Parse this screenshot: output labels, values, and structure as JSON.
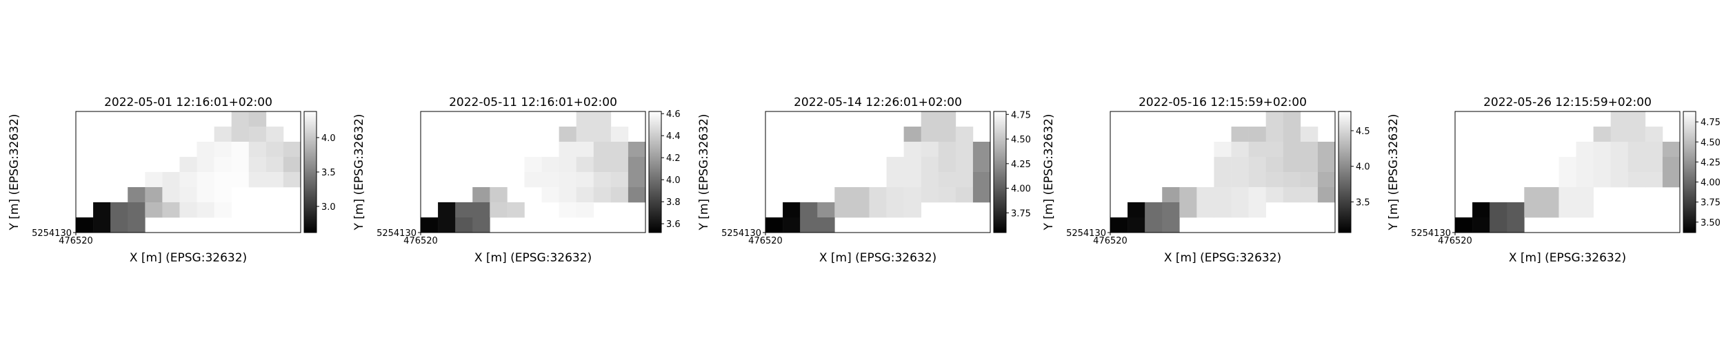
{
  "chart_data": [
    {
      "type": "heatmap",
      "title": "2022-05-01 12:16:01+02:00",
      "xlabel": "X [m] (EPSG:32632)",
      "ylabel": "Y [m] (EPSG:32632)",
      "x_tick_labels": [
        "476520"
      ],
      "y_tick_labels": [
        "5254130"
      ],
      "colorbar_ticks": [
        3.0,
        3.5,
        4.0
      ],
      "colorbar_tick_labels": [
        "3.0",
        "3.5",
        "4.0"
      ],
      "vmin": 2.62,
      "vmax": 4.38,
      "grid": [
        [
          null,
          null,
          null,
          null,
          null,
          null,
          null,
          null,
          null,
          4.1,
          4.05,
          null,
          null
        ],
        [
          null,
          null,
          null,
          null,
          null,
          null,
          null,
          null,
          4.2,
          4.1,
          4.12,
          4.2,
          null
        ],
        [
          null,
          null,
          null,
          null,
          null,
          null,
          null,
          4.3,
          4.32,
          4.35,
          4.2,
          4.15,
          4.1
        ],
        [
          null,
          null,
          null,
          null,
          null,
          null,
          4.25,
          4.3,
          4.34,
          4.35,
          4.22,
          4.18,
          4.05
        ],
        [
          null,
          null,
          null,
          null,
          4.3,
          4.25,
          4.3,
          4.34,
          4.36,
          4.36,
          4.25,
          4.25,
          4.15
        ],
        [
          null,
          null,
          null,
          3.55,
          3.8,
          4.25,
          4.28,
          4.34,
          4.36,
          null,
          null,
          null,
          null
        ],
        [
          null,
          2.7,
          3.3,
          3.35,
          3.9,
          4.02,
          4.25,
          4.28,
          4.34,
          null,
          null,
          null,
          null
        ],
        [
          2.65,
          2.7,
          3.3,
          3.35,
          null,
          null,
          null,
          null,
          null,
          null,
          null,
          null,
          null
        ]
      ]
    },
    {
      "type": "heatmap",
      "title": "2022-05-11 12:16:01+02:00",
      "xlabel": "X [m] (EPSG:32632)",
      "ylabel": "Y [m] (EPSG:32632)",
      "x_tick_labels": [
        "476520"
      ],
      "y_tick_labels": [
        "5254130"
      ],
      "colorbar_ticks": [
        3.6,
        3.8,
        4.0,
        4.2,
        4.4,
        4.6
      ],
      "colorbar_tick_labels": [
        "3.6",
        "3.8",
        "4.0",
        "4.2",
        "4.4",
        "4.6"
      ],
      "vmin": 3.52,
      "vmax": 4.62,
      "grid": [
        [
          null,
          null,
          null,
          null,
          null,
          null,
          null,
          null,
          null,
          4.48,
          4.48,
          null,
          null
        ],
        [
          null,
          null,
          null,
          null,
          null,
          null,
          null,
          null,
          4.4,
          4.48,
          4.48,
          4.55,
          null
        ],
        [
          null,
          null,
          null,
          null,
          null,
          null,
          null,
          null,
          4.55,
          4.55,
          4.45,
          4.45,
          4.2
        ],
        [
          null,
          null,
          null,
          null,
          null,
          null,
          4.58,
          4.56,
          4.55,
          4.5,
          4.45,
          4.45,
          4.15
        ],
        [
          null,
          null,
          null,
          null,
          null,
          null,
          4.57,
          4.57,
          4.56,
          4.55,
          4.5,
          4.48,
          4.15
        ],
        [
          null,
          null,
          null,
          4.2,
          4.4,
          null,
          null,
          4.58,
          4.56,
          4.52,
          4.48,
          4.45,
          4.1
        ],
        [
          null,
          3.58,
          3.95,
          3.95,
          4.42,
          4.44,
          null,
          null,
          4.59,
          4.58,
          null,
          null,
          null
        ],
        [
          3.54,
          3.58,
          3.9,
          3.95,
          null,
          null,
          null,
          null,
          null,
          null,
          null,
          null,
          null
        ]
      ]
    },
    {
      "type": "heatmap",
      "title": "2022-05-14 12:26:01+02:00",
      "xlabel": "X [m] (EPSG:32632)",
      "ylabel": "Y [m] (EPSG:32632)",
      "x_tick_labels": [
        "476520"
      ],
      "y_tick_labels": [
        "5254130"
      ],
      "colorbar_ticks": [
        3.75,
        4.0,
        4.25,
        4.5,
        4.75
      ],
      "colorbar_tick_labels": [
        "3.75",
        "4.00",
        "4.25",
        "4.50",
        "4.75"
      ],
      "vmin": 3.55,
      "vmax": 4.78,
      "grid": [
        [
          null,
          null,
          null,
          null,
          null,
          null,
          null,
          null,
          null,
          4.56,
          4.56,
          null,
          null
        ],
        [
          null,
          null,
          null,
          null,
          null,
          null,
          null,
          null,
          4.4,
          4.56,
          4.56,
          4.62,
          null
        ],
        [
          null,
          null,
          null,
          null,
          null,
          null,
          null,
          null,
          4.68,
          4.66,
          4.6,
          4.62,
          4.25
        ],
        [
          null,
          null,
          null,
          null,
          null,
          null,
          null,
          4.68,
          4.68,
          4.64,
          4.6,
          4.62,
          4.25
        ],
        [
          null,
          null,
          null,
          null,
          null,
          null,
          null,
          4.68,
          4.68,
          4.64,
          4.62,
          4.62,
          4.2
        ],
        [
          null,
          null,
          null,
          null,
          4.52,
          4.52,
          4.62,
          4.65,
          4.66,
          4.64,
          4.63,
          4.6,
          4.2
        ],
        [
          null,
          3.58,
          4.05,
          4.25,
          4.52,
          4.52,
          4.62,
          4.65,
          4.66,
          null,
          null,
          null,
          null
        ],
        [
          3.56,
          3.6,
          4.05,
          4.05,
          null,
          null,
          null,
          null,
          null,
          null,
          null,
          null,
          null
        ]
      ]
    },
    {
      "type": "heatmap",
      "title": "2022-05-16 12:15:59+02:00",
      "xlabel": "X [m] (EPSG:32632)",
      "ylabel": "Y [m] (EPSG:32632)",
      "x_tick_labels": [
        "476520"
      ],
      "y_tick_labels": [
        "5254130"
      ],
      "colorbar_ticks": [
        3.5,
        4.0,
        4.5
      ],
      "colorbar_tick_labels": [
        "3.5",
        "4.0",
        "4.5"
      ],
      "vmin": 3.07,
      "vmax": 4.77,
      "grid": [
        [
          null,
          null,
          null,
          null,
          null,
          null,
          null,
          null,
          null,
          4.5,
          4.45,
          null,
          null
        ],
        [
          null,
          null,
          null,
          null,
          null,
          null,
          null,
          4.4,
          4.4,
          4.5,
          4.45,
          4.6,
          null
        ],
        [
          null,
          null,
          null,
          null,
          null,
          null,
          4.68,
          4.6,
          4.52,
          4.52,
          4.45,
          4.45,
          4.3
        ],
        [
          null,
          null,
          null,
          null,
          null,
          null,
          4.58,
          4.58,
          4.55,
          4.5,
          4.45,
          4.45,
          4.3
        ],
        [
          null,
          null,
          null,
          null,
          null,
          null,
          4.58,
          4.58,
          4.55,
          4.52,
          4.5,
          4.48,
          4.25
        ],
        [
          null,
          null,
          null,
          4.15,
          4.35,
          4.6,
          4.6,
          4.62,
          4.66,
          4.6,
          4.55,
          4.55,
          4.2
        ],
        [
          null,
          3.12,
          3.8,
          3.85,
          4.35,
          4.6,
          4.6,
          4.62,
          4.66,
          null,
          null,
          null,
          null
        ],
        [
          3.1,
          3.15,
          3.8,
          3.85,
          null,
          null,
          null,
          null,
          null,
          null,
          null,
          null,
          null
        ]
      ]
    },
    {
      "type": "heatmap",
      "title": "2022-05-26 12:15:59+02:00",
      "xlabel": "X [m] (EPSG:32632)",
      "ylabel": "Y [m] (EPSG:32632)",
      "x_tick_labels": [
        "476520"
      ],
      "y_tick_labels": [
        "5254130"
      ],
      "colorbar_ticks": [
        3.5,
        3.75,
        4.0,
        4.25,
        4.5,
        4.75
      ],
      "colorbar_tick_labels": [
        "3.50",
        "3.75",
        "4.00",
        "4.25",
        "4.50",
        "4.75"
      ],
      "vmin": 3.37,
      "vmax": 4.88,
      "grid": [
        [
          null,
          null,
          null,
          null,
          null,
          null,
          null,
          null,
          null,
          4.68,
          4.68,
          null,
          null
        ],
        [
          null,
          null,
          null,
          null,
          null,
          null,
          null,
          null,
          4.62,
          4.68,
          4.68,
          4.72,
          null
        ],
        [
          null,
          null,
          null,
          null,
          null,
          null,
          null,
          4.8,
          4.78,
          4.75,
          4.7,
          4.7,
          4.45
        ],
        [
          null,
          null,
          null,
          null,
          null,
          null,
          4.82,
          4.8,
          4.78,
          4.75,
          4.7,
          4.7,
          4.4
        ],
        [
          null,
          null,
          null,
          null,
          null,
          null,
          4.82,
          4.8,
          4.78,
          4.75,
          4.72,
          4.72,
          4.4
        ],
        [
          null,
          null,
          null,
          null,
          4.52,
          4.52,
          4.78,
          4.78,
          null,
          null,
          null,
          null,
          null
        ],
        [
          null,
          3.4,
          3.85,
          3.9,
          4.52,
          4.52,
          4.78,
          4.78,
          null,
          null,
          null,
          null,
          null
        ],
        [
          3.38,
          3.42,
          3.85,
          3.9,
          null,
          null,
          null,
          null,
          null,
          null,
          null,
          null,
          null
        ]
      ]
    }
  ]
}
